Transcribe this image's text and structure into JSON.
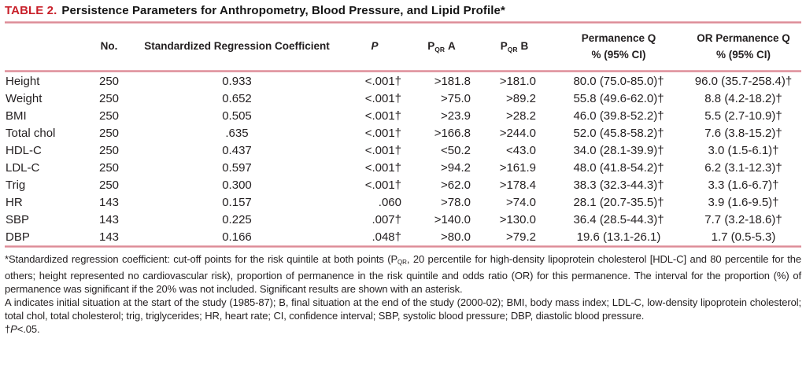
{
  "title": {
    "label": "TABLE 2.",
    "text": "Persistence Parameters for Anthropometry, Blood Pressure, and Lipid Profile*"
  },
  "colors": {
    "accent_red": "#c8202a",
    "rule_pink": "#d8808d",
    "text": "#231f20"
  },
  "table": {
    "columns": {
      "no": "No.",
      "src": "Standardized Regression Coefficient",
      "p": "P",
      "pqr_base": "P",
      "pqr_sub": "QR",
      "pqr_a_suffix": "A",
      "pqr_b_suffix": "B",
      "perm_line1": "Permanence Q",
      "perm_line2": "% (95% CI)",
      "or_line1": "OR Permanence Q",
      "or_line2": "% (95% CI)"
    },
    "rows": [
      {
        "label": "Height",
        "no": "250",
        "src": "0.933",
        "p": "<.001†",
        "pqr_a": ">181.8",
        "pqr_b": ">181.0",
        "perm_q": "80.0 (75.0-85.0)†",
        "or_perm_q": "96.0 (35.7-258.4)†"
      },
      {
        "label": "Weight",
        "no": "250",
        "src": "0.652",
        "p": "<.001†",
        "pqr_a": ">75.0",
        "pqr_b": ">89.2",
        "perm_q": "55.8 (49.6-62.0)†",
        "or_perm_q": "8.8 (4.2-18.2)†"
      },
      {
        "label": "BMI",
        "no": "250",
        "src": "0.505",
        "p": "<.001†",
        "pqr_a": ">23.9",
        "pqr_b": ">28.2",
        "perm_q": "46.0 (39.8-52.2)†",
        "or_perm_q": "5.5 (2.7-10.9)†"
      },
      {
        "label": "Total chol",
        "no": "250",
        "src": ".635",
        "p": "<.001†",
        "pqr_a": ">166.8",
        "pqr_b": ">244.0",
        "perm_q": "52.0 (45.8-58.2)†",
        "or_perm_q": "7.6 (3.8-15.2)†"
      },
      {
        "label": "HDL-C",
        "no": "250",
        "src": "0.437",
        "p": "<.001†",
        "pqr_a": "<50.2",
        "pqr_b": "<43.0",
        "perm_q": "34.0 (28.1-39.9)†",
        "or_perm_q": "3.0 (1.5-6.1)†"
      },
      {
        "label": "LDL-C",
        "no": "250",
        "src": "0.597",
        "p": "<.001†",
        "pqr_a": ">94.2",
        "pqr_b": ">161.9",
        "perm_q": "48.0 (41.8-54.2)†",
        "or_perm_q": "6.2 (3.1-12.3)†"
      },
      {
        "label": "Trig",
        "no": "250",
        "src": "0.300",
        "p": "<.001†",
        "pqr_a": ">62.0",
        "pqr_b": ">178.4",
        "perm_q": "38.3 (32.3-44.3)†",
        "or_perm_q": "3.3 (1.6-6.7)†"
      },
      {
        "label": "HR",
        "no": "143",
        "src": "0.157",
        "p": ".060",
        "pqr_a": ">78.0",
        "pqr_b": ">74.0",
        "perm_q": "28.1 (20.7-35.5)†",
        "or_perm_q": "3.9 (1.6-9.5)†"
      },
      {
        "label": "SBP",
        "no": "143",
        "src": "0.225",
        "p": ".007†",
        "pqr_a": ">140.0",
        "pqr_b": ">130.0",
        "perm_q": "36.4 (28.5-44.3)†",
        "or_perm_q": "7.7 (3.2-18.6)†"
      },
      {
        "label": "DBP",
        "no": "143",
        "src": "0.166",
        "p": ".048†",
        "pqr_a": ">80.0",
        "pqr_b": ">79.2",
        "perm_q": "19.6 (13.1-26.1)",
        "or_perm_q": "1.7 (0.5-5.3)"
      }
    ]
  },
  "footnotes": {
    "f1_pre": "*Standardized regression coefficient: cut-off points for the risk quintile at both points (P",
    "f1_sub": "QR",
    "f1_post": ", 20 percentile for high-density lipoprotein cholesterol [HDL-C] and 80 percentile for the others; height represented no cardiovascular risk), proportion of permanence in the risk quintile and odds ratio (OR) for this permanence. The interval for the proportion (%) of permanence was significant if the 20% was not included. Significant results are shown with an asterisk.",
    "f2": "A indicates initial situation at the start of the study (1985-87); B, final situation at the end of the study (2000-02); BMI, body mass index; LDL-C, low-density lipoprotein cholesterol; total chol, total cholesterol; trig, triglycerides; HR, heart rate; CI, confidence interval; SBP, systolic blood pressure; DBP, diastolic blood pressure.",
    "f3_dagger": "†",
    "f3_p": "P",
    "f3_rest": "<.05."
  }
}
